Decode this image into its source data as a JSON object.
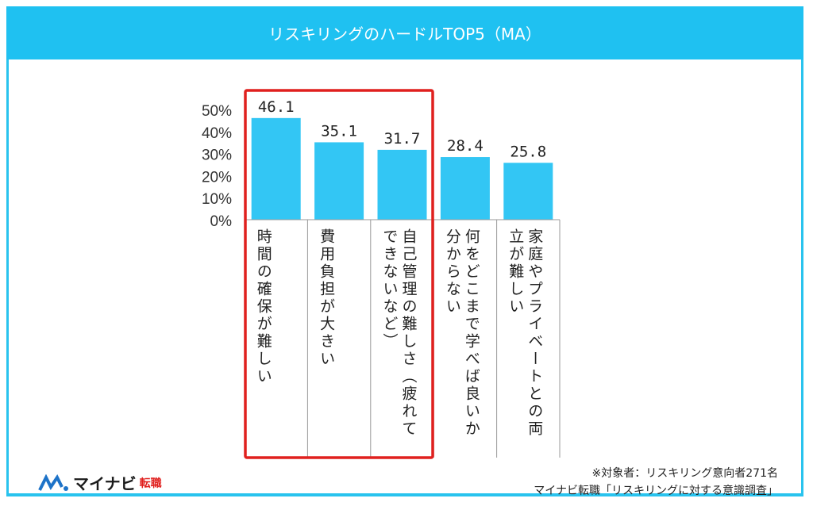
{
  "title": "リスキリングのハードルTOP5（MA）",
  "chart_data": {
    "type": "bar",
    "title": "リスキリングのハードルTOP5（MA）",
    "categories": [
      "時間の確保が難しい",
      "費用負担が大きい",
      "自己管理の難しさ（疲れてできないなど）",
      "何をどこまで学べば良いか分からない",
      "家庭やプライベートとの両立が難しい"
    ],
    "values": [
      46.1,
      35.1,
      31.7,
      28.4,
      25.8
    ],
    "data_labels": [
      "46.1",
      "35.1",
      "31.7",
      "28.4",
      "25.8"
    ],
    "yticks": [
      "0%",
      "10%",
      "20%",
      "30%",
      "40%",
      "50%"
    ],
    "ylim": [
      0,
      50
    ],
    "grid": false,
    "bar_color": "#33c6f4",
    "highlight": {
      "categories": [
        0,
        1,
        2
      ],
      "color": "#e0201e"
    }
  },
  "note": {
    "line1": "※対象者：リスキリング意向者271名",
    "line2": "マイナビ転職「リスキリングに対する意識調査」"
  },
  "logo": {
    "text": "マイナビ",
    "sub": "転職"
  }
}
